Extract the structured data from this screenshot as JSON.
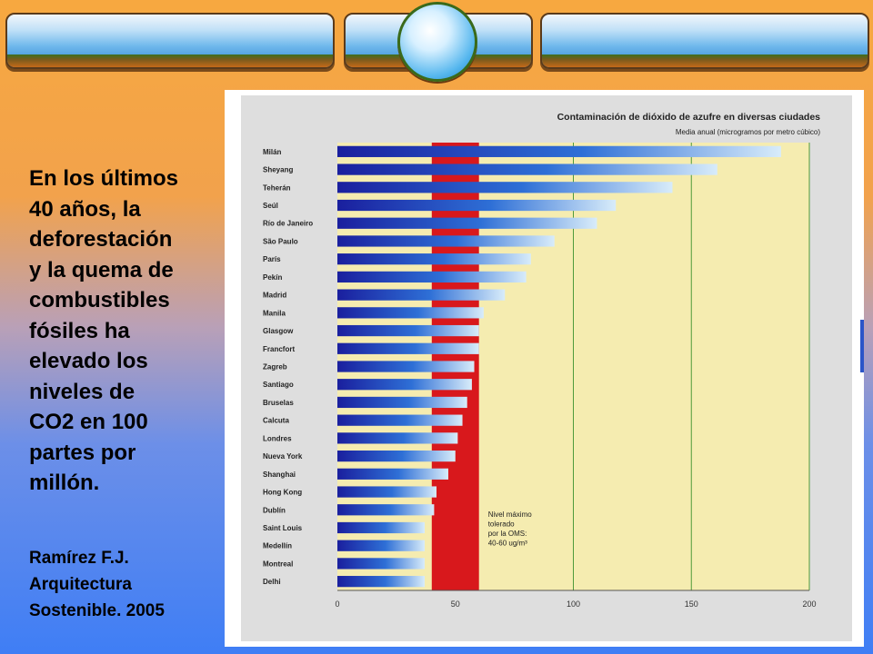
{
  "quote": {
    "lines": [
      "En los últimos",
      "40 años, la",
      "deforestación",
      "y la quema de",
      "combustibles",
      "fósiles ha",
      "elevado los",
      "niveles de",
      "CO2 en 100",
      "partes por",
      "millón."
    ]
  },
  "source": {
    "author": "Ramírez F.J.",
    "title_line1": "Arquitectura",
    "title_line2": "Sostenible. 2005"
  },
  "chart_data": {
    "type": "bar",
    "title": "Contaminación de dióxido de azufre en diversas ciudades",
    "subtitle": "Media anual (microgramos por metro cúbico)",
    "categories": [
      "Milán",
      "Sheyang",
      "Teherán",
      "Seúl",
      "Río de Janeiro",
      "São Paulo",
      "París",
      "Pekín",
      "Madrid",
      "Manila",
      "Glasgow",
      "Francfort",
      "Zagreb",
      "Santiago",
      "Bruselas",
      "Calcuta",
      "Londres",
      "Nueva York",
      "Shanghai",
      "Hong Kong",
      "Dublín",
      "Saint Louis",
      "Medellín",
      "Montreal",
      "Delhi"
    ],
    "values": [
      188,
      161,
      142,
      118,
      110,
      92,
      82,
      80,
      71,
      62,
      60,
      60,
      58,
      57,
      55,
      53,
      51,
      50,
      47,
      42,
      41,
      37,
      37,
      37,
      37
    ],
    "xticks": [
      0,
      50,
      100,
      150,
      200
    ],
    "xlim": [
      0,
      200
    ],
    "guideline_range": [
      40,
      60
    ],
    "annotation": [
      "Nivel máximo",
      "tolerado",
      "por la OMS:",
      "40-60 ug/m³"
    ],
    "colors": {
      "bar_start": "#1a1f9e",
      "bar_end": "#cfe6f8",
      "band": "#d8181c",
      "background": "#f5ecb0",
      "gridline": "#4f9a3a"
    }
  }
}
